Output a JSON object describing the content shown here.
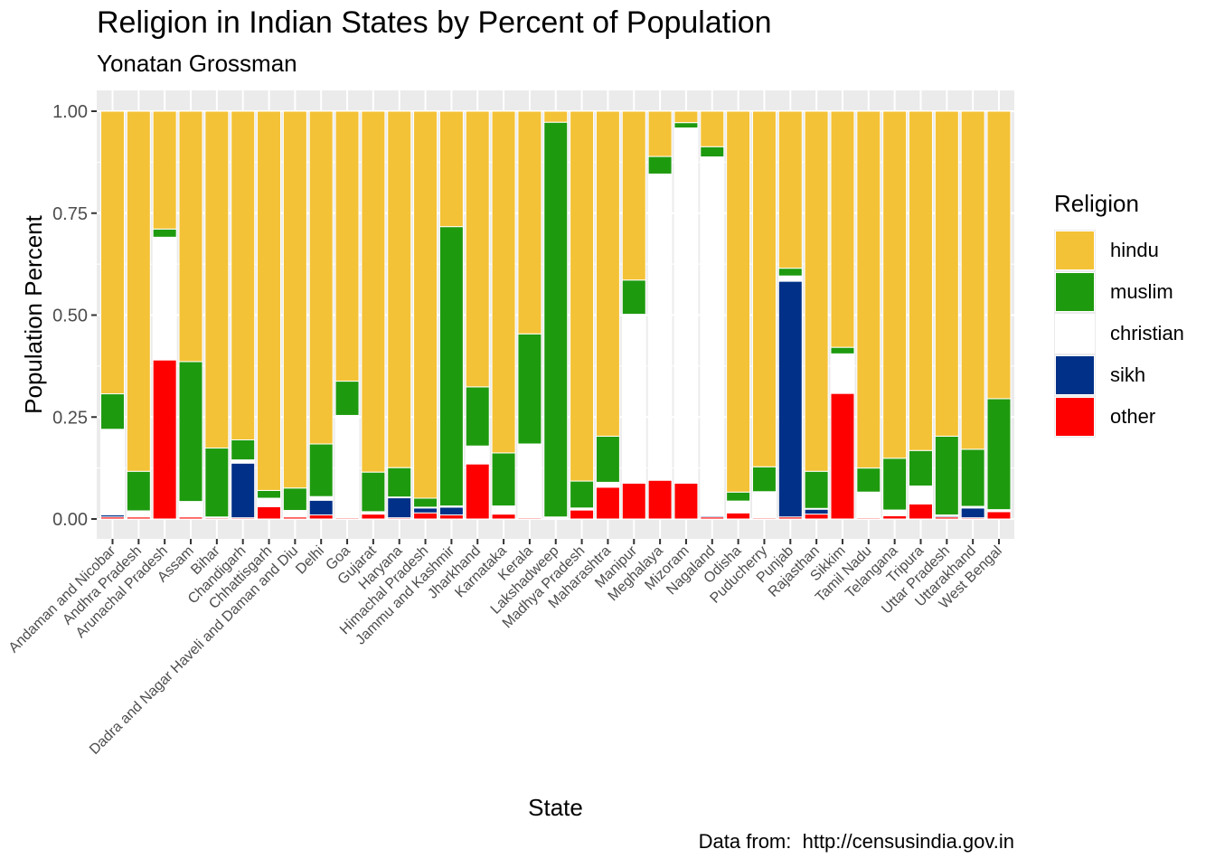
{
  "chart_data": {
    "type": "bar",
    "stacked": true,
    "title": "Religion in Indian States by Percent of Population",
    "subtitle": "Yonatan Grossman",
    "caption": "Data from:  http://censusindia.gov.in",
    "xlabel": "State",
    "ylabel": "Population Percent",
    "ylim": [
      0,
      1
    ],
    "yticks": [
      "0.00",
      "0.25",
      "0.50",
      "0.75",
      "1.00"
    ],
    "grid": true,
    "legend_title": "Religion",
    "legend_position": "right",
    "categories": [
      "Andaman and Nicobar",
      "Andhra Pradesh",
      "Arunachal Pradesh",
      "Assam",
      "Bihar",
      "Chandigarh",
      "Chhattisgarh",
      "Dadra and Nagar Haveli and Daman and Diu",
      "Delhi",
      "Goa",
      "Gujarat",
      "Haryana",
      "Himachal Pradesh",
      "Jammu and Kashmir",
      "Jharkhand",
      "Karnataka",
      "Kerala",
      "Lakshadweep",
      "Madhya Pradesh",
      "Maharashtra",
      "Manipur",
      "Meghalaya",
      "Mizoram",
      "Nagaland",
      "Odisha",
      "Puducherry",
      "Punjab",
      "Rajasthan",
      "Sikkim",
      "Tamil Nadu",
      "Telangana",
      "Tripura",
      "Uttar Pradesh",
      "Uttarakhand",
      "West Bengal"
    ],
    "series": [
      {
        "name": "other",
        "color": "#ff0000",
        "values": [
          0.005,
          0.005,
          0.39,
          0.005,
          0.003,
          0.003,
          0.03,
          0.005,
          0.01,
          0.003,
          0.012,
          0.003,
          0.015,
          0.01,
          0.135,
          0.012,
          0.003,
          0.001,
          0.022,
          0.078,
          0.088,
          0.095,
          0.088,
          0.005,
          0.015,
          0.003,
          0.005,
          0.012,
          0.308,
          0.003,
          0.008,
          0.037,
          0.005,
          0.003,
          0.018
        ]
      },
      {
        "name": "sikh",
        "color": "#003087",
        "values": [
          0.005,
          0.001,
          0.001,
          0.001,
          0.001,
          0.134,
          0.002,
          0.001,
          0.036,
          0.001,
          0.001,
          0.049,
          0.012,
          0.019,
          0.001,
          0.001,
          0.001,
          0.001,
          0.002,
          0.002,
          0.001,
          0.001,
          0.001,
          0.003,
          0.001,
          0.001,
          0.578,
          0.012,
          0.001,
          0.001,
          0.001,
          0.001,
          0.003,
          0.024,
          0.001
        ]
      },
      {
        "name": "christian",
        "color": "#ffffff",
        "values": [
          0.21,
          0.014,
          0.3,
          0.037,
          0.001,
          0.008,
          0.019,
          0.015,
          0.009,
          0.25,
          0.005,
          0.002,
          0.002,
          0.003,
          0.043,
          0.019,
          0.18,
          0.003,
          0.003,
          0.01,
          0.413,
          0.75,
          0.87,
          0.88,
          0.028,
          0.063,
          0.013,
          0.002,
          0.096,
          0.062,
          0.013,
          0.043,
          0.002,
          0.004,
          0.004
        ]
      },
      {
        "name": "muslim",
        "color": "#1e9a0e",
        "values": [
          0.087,
          0.097,
          0.02,
          0.343,
          0.169,
          0.049,
          0.019,
          0.055,
          0.129,
          0.084,
          0.097,
          0.072,
          0.022,
          0.685,
          0.145,
          0.13,
          0.27,
          0.968,
          0.066,
          0.113,
          0.084,
          0.043,
          0.013,
          0.025,
          0.022,
          0.061,
          0.019,
          0.091,
          0.016,
          0.059,
          0.127,
          0.087,
          0.193,
          0.14,
          0.272
        ]
      },
      {
        "name": "hindu",
        "color": "#f4c236",
        "values": [
          0.693,
          0.883,
          0.289,
          0.614,
          0.826,
          0.806,
          0.93,
          0.924,
          0.816,
          0.662,
          0.885,
          0.874,
          0.949,
          0.283,
          0.676,
          0.838,
          0.546,
          0.027,
          0.907,
          0.797,
          0.414,
          0.111,
          0.028,
          0.087,
          0.934,
          0.872,
          0.385,
          0.883,
          0.579,
          0.875,
          0.851,
          0.832,
          0.797,
          0.829,
          0.705
        ]
      }
    ]
  }
}
